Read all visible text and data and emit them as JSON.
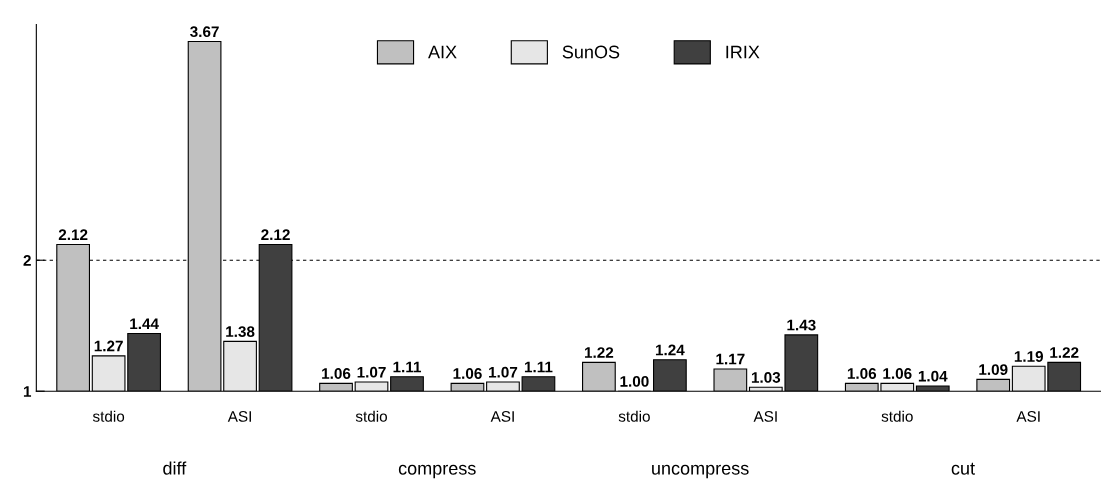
{
  "chart_data": {
    "type": "bar",
    "categories": [
      "stdio",
      "ASI",
      "stdio",
      "ASI",
      "stdio",
      "ASI",
      "stdio",
      "ASI"
    ],
    "series": [
      {
        "name": "AIX",
        "color": "#c0c0c0",
        "values": [
          2.12,
          3.67,
          1.06,
          1.06,
          1.22,
          1.17,
          1.06,
          1.09
        ],
        "value_labels": [
          "2.12",
          "3.67",
          "1.06",
          "1.06",
          "1.22",
          "1.17",
          "1.06",
          "1.09"
        ]
      },
      {
        "name": "SunOS",
        "color": "#e6e6e6",
        "values": [
          1.27,
          1.38,
          1.07,
          1.07,
          1.0,
          1.03,
          1.06,
          1.19
        ],
        "value_labels": [
          "1.27",
          "1.38",
          "1.07",
          "1.07",
          "1.00",
          "1.03",
          "1.06",
          "1.19"
        ]
      },
      {
        "name": "IRIX",
        "color": "#404040",
        "values": [
          1.44,
          2.12,
          1.11,
          1.11,
          1.24,
          1.43,
          1.04,
          1.22
        ],
        "value_labels": [
          "1.44",
          "2.12",
          "1.11",
          "1.11",
          "1.24",
          "1.43",
          "1.04",
          "1.22"
        ]
      }
    ],
    "annotations": [
      "diff",
      "compress",
      "uncompress",
      "cut"
    ],
    "ylim": [
      1,
      3.8
    ],
    "yticks": [
      1,
      2
    ],
    "ref_lines": [
      {
        "axis": "y",
        "value": 2,
        "line_style": "dashed",
        "color": "#000000"
      }
    ],
    "grid": false,
    "legend": "top"
  }
}
